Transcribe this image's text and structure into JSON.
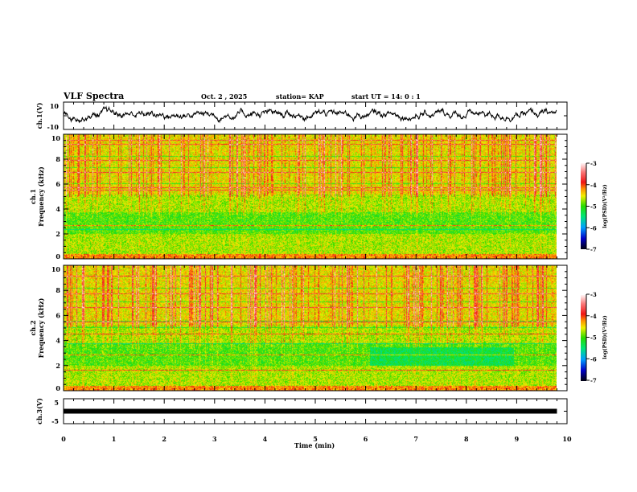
{
  "header": {
    "title": "VLF Spectra",
    "date": "Oct. 2  , 2025",
    "station": "station= KAP",
    "start_ut": "start  UT =   14: 0  : 1"
  },
  "chart_data": [
    {
      "type": "line",
      "name": "ch1-waveform",
      "ylabel": "ch.1(V)",
      "ylim": [
        -10,
        10
      ],
      "ytick_labels": [
        "10",
        "-10"
      ],
      "xlim": [
        0,
        10
      ],
      "x_data_end": 9.8,
      "description_values": "noisy waveform mostly between -4 and 6 V"
    },
    {
      "type": "heatmap",
      "name": "ch1-spectrogram",
      "ylabel_line1": "ch.1",
      "ylabel_line2": "Frequency  (kHz)",
      "ylim": [
        0,
        10
      ],
      "ytick_labels": [
        "0",
        "2",
        "4",
        "6",
        "8",
        "10"
      ],
      "xlim": [
        0,
        10
      ],
      "x_data_end": 9.8,
      "colorbar": {
        "label": "log(PSD)(V²/Hz)",
        "range": [
          -7,
          -3
        ],
        "tick_labels": [
          "-3",
          "-4",
          "-5",
          "-6",
          "-7"
        ]
      }
    },
    {
      "type": "heatmap",
      "name": "ch2-spectrogram",
      "ylabel_line1": "ch.2",
      "ylabel_line2": "Frequency  (kHz)",
      "ylim": [
        0,
        10
      ],
      "ytick_labels": [
        "0",
        "2",
        "4",
        "6",
        "8",
        "10"
      ],
      "xlim": [
        0,
        10
      ],
      "x_data_end": 9.8,
      "colorbar": {
        "label": "log(PSD)(V²/Hz)",
        "range": [
          -7,
          -3
        ],
        "tick_labels": [
          "-3",
          "-4",
          "-5",
          "-6",
          "-7"
        ]
      }
    },
    {
      "type": "line",
      "name": "ch3-waveform",
      "ylabel": "ch.3(V)",
      "ylim": [
        -5,
        5
      ],
      "ytick_labels": [
        "5",
        "-5"
      ],
      "constant_value": 0,
      "xlim": [
        0,
        10
      ],
      "x_data_end": 9.8
    }
  ],
  "xaxis": {
    "label": "Time  (min)",
    "tick_labels": [
      "0",
      "1",
      "2",
      "3",
      "4",
      "5",
      "6",
      "7",
      "8",
      "9",
      "10"
    ]
  }
}
